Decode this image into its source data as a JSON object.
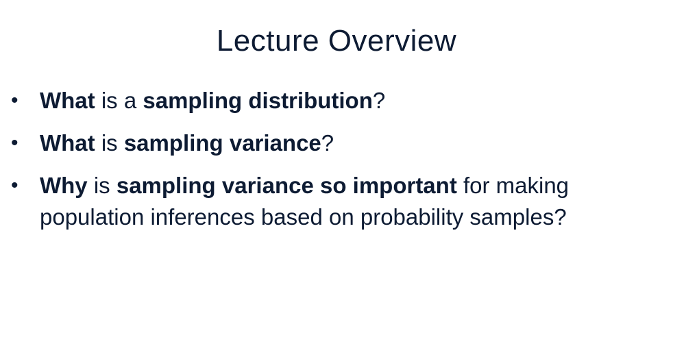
{
  "slide": {
    "title": "Lecture Overview",
    "bullet_char": "•",
    "bullets": [
      {
        "parts": [
          {
            "text": "What",
            "bold": true
          },
          {
            "text": " is a ",
            "bold": false
          },
          {
            "text": "sampling distribution",
            "bold": true
          },
          {
            "text": "?",
            "bold": false
          }
        ]
      },
      {
        "parts": [
          {
            "text": "What",
            "bold": true
          },
          {
            "text": " is ",
            "bold": false
          },
          {
            "text": "sampling variance",
            "bold": true
          },
          {
            "text": "?",
            "bold": false
          }
        ]
      },
      {
        "parts": [
          {
            "text": "Why",
            "bold": true
          },
          {
            "text": " is ",
            "bold": false
          },
          {
            "text": "sampling variance so important",
            "bold": true
          },
          {
            "text": " for making population inferences based on probability samples?",
            "bold": false
          }
        ]
      }
    ]
  }
}
